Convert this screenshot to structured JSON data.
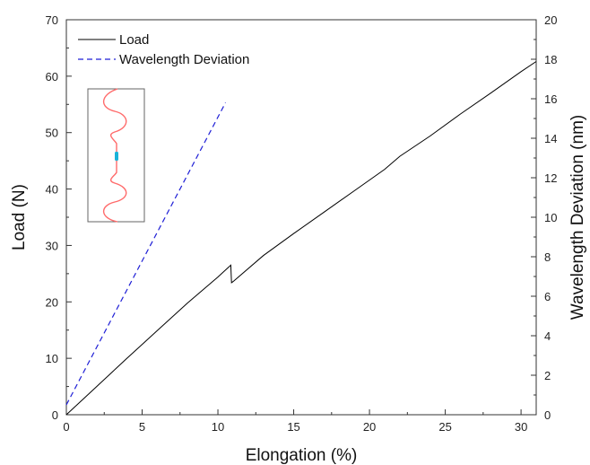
{
  "chart_data": {
    "type": "line",
    "xlabel": "Elongation (%)",
    "ylabel_left": "Load (N)",
    "ylabel_right": "Wavelength Deviation (nm)",
    "xlim": [
      0,
      31
    ],
    "ylim_left": [
      0,
      70
    ],
    "ylim_right": [
      0,
      20
    ],
    "x_ticks": [
      0,
      5,
      10,
      15,
      20,
      25,
      30
    ],
    "y_left_ticks": [
      0,
      10,
      20,
      30,
      40,
      50,
      60,
      70
    ],
    "y_right_ticks": [
      0,
      2,
      4,
      6,
      8,
      10,
      12,
      14,
      16,
      18,
      20
    ],
    "legend_position": "top-left",
    "series": [
      {
        "name": "Load",
        "axis": "left",
        "style": "solid",
        "color": "#000000",
        "x": [
          0,
          2,
          4,
          6,
          8,
          10,
          10.85,
          10.9,
          11.0,
          13,
          15,
          17,
          19,
          21,
          22,
          24,
          26,
          28,
          30,
          31
        ],
        "y": [
          0,
          5,
          10,
          14.9,
          19.8,
          24.4,
          26.5,
          23.4,
          23.6,
          28.2,
          32.1,
          35.9,
          39.7,
          43.5,
          45.8,
          49.4,
          53.3,
          57.0,
          60.8,
          62.6
        ]
      },
      {
        "name": "Wavelength Deviation",
        "axis": "right",
        "style": "dashed",
        "color": "#1f1fd6",
        "x": [
          0,
          10.5
        ],
        "y": [
          0.5,
          15.8
        ]
      }
    ],
    "inset": {
      "description": "serpentine fiber sample schematic",
      "line_color": "#ff6b6b",
      "marker_color": "#1ab3d9"
    }
  }
}
